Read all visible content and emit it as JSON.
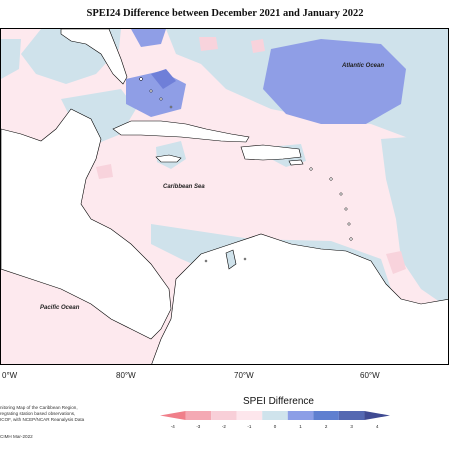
{
  "title": "SPEI24 Difference between December 2021 and January 2022",
  "labels": {
    "atlantic": "Atlantic Ocean",
    "caribbean": "Caribbean Sea",
    "pacific": "Pacific Ocean"
  },
  "longitudes": [
    "0°W",
    "80°W",
    "70°W",
    "60°W"
  ],
  "credits": {
    "line1": "nitoring Map of the Caribbean Region,",
    "line2": "regrating station based observations,",
    "line3": "ICOF, with NCEP/NCAR Reanalysis Data",
    "date": "CIMH Mar-2022"
  },
  "legend": {
    "title": "SPEI Difference",
    "ticks": [
      "-4",
      "-3",
      "-2",
      "-1",
      "0",
      "1",
      "2",
      "3",
      "4"
    ],
    "colors": [
      "#f07f8a",
      "#f4a9b4",
      "#f8cfd8",
      "#fde6ec",
      "#cfe3ec",
      "#8c9ee6",
      "#5f7fd0",
      "#5468b2",
      "#3f4a92"
    ]
  },
  "colors": {
    "light_pink": "#fde8ee",
    "pink": "#f8c8d4",
    "light_blue": "#cfe2eb",
    "blue": "#8f9ee6",
    "dark_blue": "#6f7fd8"
  }
}
